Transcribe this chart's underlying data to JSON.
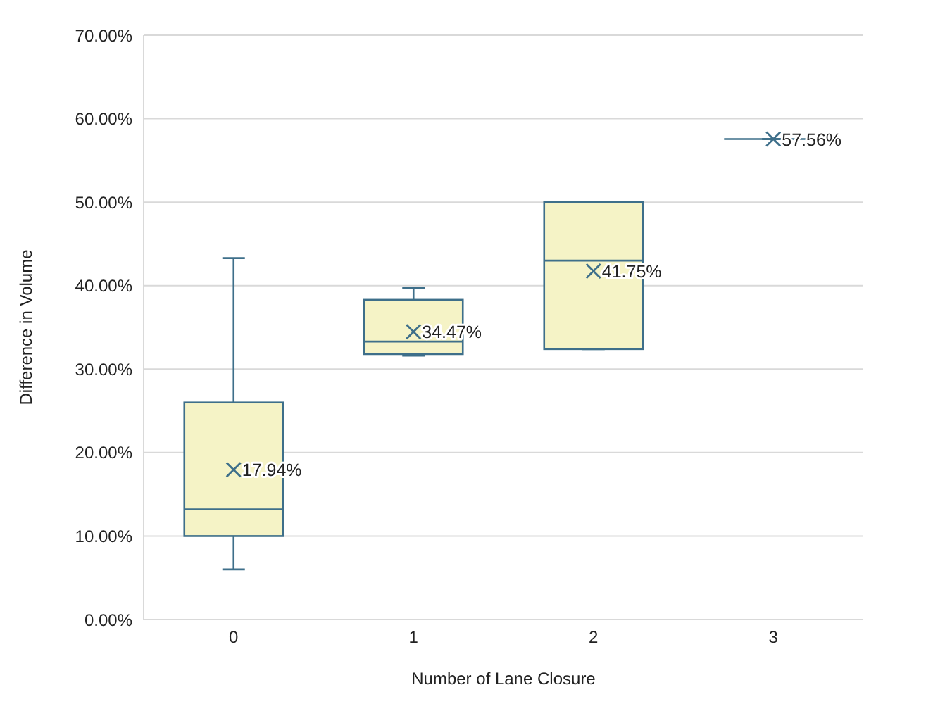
{
  "chart_data": {
    "type": "box",
    "xlabel": "Number of Lane Closure",
    "ylabel": "Difference in Volume",
    "categories": [
      "0",
      "1",
      "2",
      "3"
    ],
    "series": [
      {
        "color": "#3e6f8a",
        "colors": [
          "#f5f3c6",
          "#f5f3c6",
          "#f5f3c6",
          null
        ],
        "boxes": [
          {
            "low": 6,
            "q1": 10,
            "median": 13.2,
            "q3": 26,
            "high": 43.3,
            "mean": 17.94
          },
          {
            "low": 31.6,
            "q1": 31.8,
            "median": 33.3,
            "q3": 38.3,
            "high": 39.7,
            "mean": 34.47
          },
          {
            "low": 32.4,
            "q1": 32.4,
            "median": 43,
            "q3": 50,
            "high": 50,
            "mean": 41.75
          },
          {
            "low": 57.56,
            "q1": 57.56,
            "median": 57.56,
            "q3": 57.56,
            "high": 57.56,
            "mean": 57.56
          }
        ]
      }
    ],
    "value_labels": [
      "17.94%",
      "34.47%",
      "41.75%",
      "57.56%"
    ],
    "marker": "cross",
    "ylim": [
      0,
      70
    ],
    "yticks": [
      {
        "value": 0,
        "label": "0.00%"
      },
      {
        "value": 10,
        "label": "10.00%"
      },
      {
        "value": 20,
        "label": "20.00%"
      },
      {
        "value": 30,
        "label": "30.00%"
      },
      {
        "value": 40,
        "label": "40.00%"
      },
      {
        "value": 50,
        "label": "50.00%"
      },
      {
        "value": 60,
        "label": "60.00%"
      },
      {
        "value": 70,
        "label": "70.00%"
      }
    ],
    "grid": "y",
    "legend": false
  }
}
